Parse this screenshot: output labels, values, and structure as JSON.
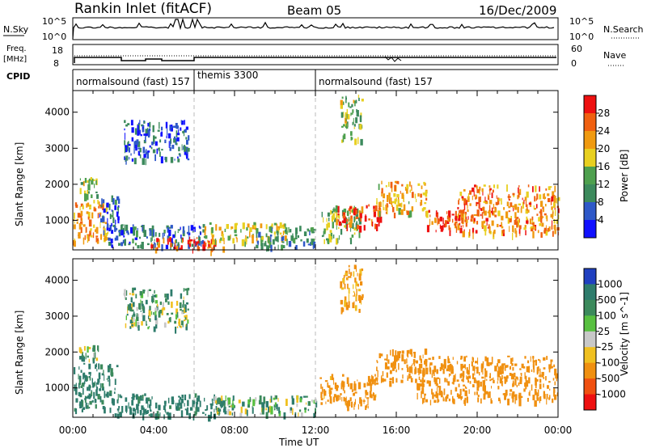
{
  "header": {
    "station": "Rankin Inlet (fitACF)",
    "beam": "Beam 05",
    "date": "16/Dec/2009"
  },
  "top_panels": {
    "nsky_label": "N.Sky",
    "nsky_ticks": [
      "10^5",
      "10^0"
    ],
    "nsearch_label": "N.Search",
    "nsearch_ticks": [
      "10^5",
      "10^0"
    ],
    "freq_label": "Freq.",
    "freq_unit": "[MHz]",
    "freq_ticks": [
      "18",
      "8"
    ],
    "nave_label": "Nave",
    "nave_ticks": [
      "60",
      "0"
    ],
    "cpid_label": "CPID",
    "cpid_segments": [
      {
        "label": "normalsound (fast) 157",
        "start_h": 0,
        "end_h": 6
      },
      {
        "label": "themis 3300",
        "start_h": 6,
        "end_h": 12
      },
      {
        "label": "normalsound (fast) 157",
        "start_h": 12,
        "end_h": 24
      }
    ]
  },
  "chart_data": [
    {
      "type": "heatmap",
      "name": "power",
      "ylabel": "Slant Range [km]",
      "yticks": [
        1000,
        2000,
        3000,
        4000
      ],
      "ylim": [
        180,
        4600
      ],
      "xlim": [
        0,
        24
      ],
      "xticks": [
        "00:00",
        "04:00",
        "08:00",
        "12:00",
        "16:00",
        "20:00",
        "00:00"
      ],
      "colorbar": {
        "label": "Power [dB]",
        "ticks": [
          4,
          8,
          12,
          16,
          20,
          24,
          28
        ],
        "colors": [
          "#1010ff",
          "#2e58c8",
          "#3c8a5c",
          "#4ea04e",
          "#e8d020",
          "#f09a10",
          "#f06010",
          "#ee1010"
        ]
      },
      "regions": [
        {
          "t0": 0,
          "t1": 1.7,
          "r0": 400,
          "r1": 1600,
          "value": 22
        },
        {
          "t0": 1.3,
          "t1": 2.3,
          "r0": 700,
          "r1": 1700,
          "value": 7
        },
        {
          "t0": 0.3,
          "t1": 1.2,
          "r0": 1700,
          "r1": 2200,
          "value": 15
        },
        {
          "t0": 1.7,
          "t1": 6.5,
          "r0": 300,
          "r1": 900,
          "value": 8
        },
        {
          "t0": 3.8,
          "t1": 7.5,
          "r0": 200,
          "r1": 550,
          "value": 27
        },
        {
          "t0": 6.5,
          "t1": 10.5,
          "r0": 450,
          "r1": 950,
          "value": 18
        },
        {
          "t0": 9,
          "t1": 12,
          "r0": 300,
          "r1": 850,
          "value": 10
        },
        {
          "t0": 12.2,
          "t1": 14.2,
          "r0": 450,
          "r1": 1450,
          "value": 14
        },
        {
          "t0": 13,
          "t1": 15.2,
          "r0": 850,
          "r1": 1450,
          "value": 28
        },
        {
          "t0": 15,
          "t1": 17.5,
          "r0": 1200,
          "r1": 2100,
          "value": 21
        },
        {
          "t0": 17.5,
          "t1": 19.5,
          "r0": 700,
          "r1": 1300,
          "value": 28
        },
        {
          "t0": 19,
          "t1": 24,
          "r0": 650,
          "r1": 2000,
          "value": 24
        },
        {
          "t0": 2.5,
          "t1": 5.7,
          "r0": 2700,
          "r1": 3800,
          "value": 6
        },
        {
          "t0": 13.2,
          "t1": 14.3,
          "r0": 3200,
          "r1": 4500,
          "value": 15
        }
      ]
    },
    {
      "type": "heatmap",
      "name": "velocity",
      "ylabel": "Slant Range [km]",
      "yticks": [
        1000,
        2000,
        3000,
        4000
      ],
      "ylim": [
        180,
        4600
      ],
      "xlim": [
        0,
        24
      ],
      "xlabel": "Time UT",
      "xticks": [
        "00:00",
        "04:00",
        "08:00",
        "12:00",
        "16:00",
        "20:00",
        "00:00"
      ],
      "colorbar": {
        "label": "Velocity [m s^-1]",
        "ticks": [
          "1000",
          "500",
          "100",
          "25",
          "-25",
          "-100",
          "-500",
          "-1000"
        ],
        "colors": [
          "#2040c0",
          "#2e7c6c",
          "#3c8a5c",
          "#58c040",
          "#c8c8c8",
          "#f0c020",
          "#f09010",
          "#f05010",
          "#ee1010"
        ]
      },
      "regions": [
        {
          "t0": 0,
          "t1": 2.2,
          "r0": 400,
          "r1": 1700,
          "value": 150
        },
        {
          "t0": 2,
          "t1": 7.5,
          "r0": 250,
          "r1": 850,
          "value": 180
        },
        {
          "t0": 7,
          "t1": 12,
          "r0": 300,
          "r1": 800,
          "value": 60
        },
        {
          "t0": 12.2,
          "t1": 15,
          "r0": 500,
          "r1": 1400,
          "value": -200
        },
        {
          "t0": 15,
          "t1": 17.5,
          "r0": 1200,
          "r1": 2100,
          "value": -300
        },
        {
          "t0": 17,
          "t1": 24,
          "r0": 650,
          "r1": 1900,
          "value": -250
        },
        {
          "t0": 0.3,
          "t1": 1.3,
          "r0": 1800,
          "r1": 2200,
          "value": 30
        },
        {
          "t0": 2.5,
          "t1": 5.7,
          "r0": 2700,
          "r1": 3800,
          "value": 40
        },
        {
          "t0": 13.2,
          "t1": 14.3,
          "r0": 3200,
          "r1": 4500,
          "value": -150
        }
      ]
    }
  ]
}
